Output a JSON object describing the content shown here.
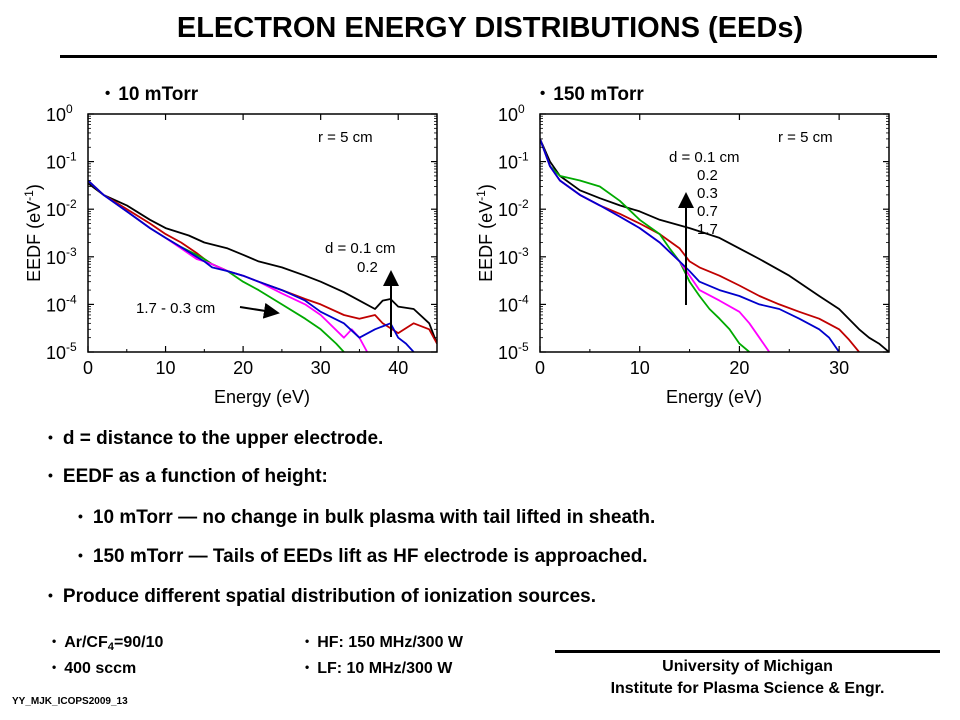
{
  "title": "ELECTRON ENERGY DISTRIBUTIONS (EEDs)",
  "chart_data": [
    {
      "type": "line",
      "panel_title": "10 mTorr",
      "xlabel": "Energy (eV)",
      "ylabel_main": "EEDF (eV",
      "ylabel_sup": "-1",
      "ylabel_close": ")",
      "y_scale": "log",
      "xlim": [
        0,
        45
      ],
      "ylim": [
        1e-05,
        1
      ],
      "xticks": [
        0,
        10,
        20,
        30,
        40
      ],
      "yticks": [
        1,
        0.1,
        0.01,
        0.001,
        0.0001,
        1e-05
      ],
      "ytick_exponents": [
        "0",
        "-1",
        "-2",
        "-3",
        "-4",
        "-5"
      ],
      "annotations": {
        "radius": "r = 5 cm",
        "d_high": "d =  0.1 cm",
        "d_high2": "0.2",
        "d_low": "1.7 - 0.3 cm"
      },
      "series": [
        {
          "color": "#000000",
          "x": [
            0,
            2,
            5,
            8,
            10,
            13,
            15,
            18,
            20,
            22,
            25,
            28,
            30,
            33,
            35,
            37,
            38,
            39,
            40,
            42,
            44,
            45
          ],
          "y": [
            0.035,
            0.02,
            0.012,
            0.006,
            0.004,
            0.0028,
            0.002,
            0.0015,
            0.0011,
            0.0008,
            0.0006,
            0.0004,
            0.0003,
            0.00018,
            0.00012,
            8e-05,
            0.00012,
            0.00013,
            9e-05,
            8e-05,
            4e-05,
            1.5e-05
          ]
        },
        {
          "color": "#c00000",
          "x": [
            0,
            2,
            5,
            8,
            10,
            12,
            14,
            15,
            16,
            18,
            20,
            22,
            25,
            28,
            30,
            33,
            35,
            37,
            38,
            40,
            42,
            44,
            45
          ],
          "y": [
            0.04,
            0.02,
            0.01,
            0.005,
            0.003,
            0.002,
            0.0012,
            0.0009,
            0.0007,
            0.0005,
            0.0004,
            0.0003,
            0.0002,
            0.00013,
            0.0001,
            6e-05,
            5e-05,
            6e-05,
            4e-05,
            2.5e-05,
            4e-05,
            3e-05,
            1.5e-05
          ]
        },
        {
          "color": "#00aa00",
          "x": [
            0,
            2,
            5,
            8,
            10,
            12,
            14,
            15,
            16,
            18,
            20,
            22,
            25,
            28,
            30,
            32,
            33
          ],
          "y": [
            0.04,
            0.02,
            0.009,
            0.004,
            0.0025,
            0.0016,
            0.0011,
            0.0009,
            0.0007,
            0.0005,
            0.0003,
            0.0002,
            0.0001,
            5e-05,
            3e-05,
            1.5e-05,
            1e-05
          ]
        },
        {
          "color": "#ff00ff",
          "x": [
            0,
            2,
            5,
            8,
            10,
            12,
            14,
            15,
            16,
            18,
            20,
            22,
            25,
            28,
            30,
            33,
            34,
            35,
            36
          ],
          "y": [
            0.04,
            0.02,
            0.009,
            0.004,
            0.0025,
            0.0015,
            0.0009,
            0.0008,
            0.0007,
            0.0005,
            0.0004,
            0.0003,
            0.00017,
            0.0001,
            6e-05,
            2e-05,
            3e-05,
            2e-05,
            1e-05
          ]
        },
        {
          "color": "#0000cc",
          "x": [
            0,
            2,
            5,
            8,
            10,
            12,
            14,
            15,
            16,
            18,
            20,
            22,
            25,
            28,
            30,
            33,
            35,
            37,
            39,
            40,
            41,
            42
          ],
          "y": [
            0.04,
            0.02,
            0.009,
            0.004,
            0.0025,
            0.0016,
            0.001,
            0.0008,
            0.0006,
            0.0005,
            0.0004,
            0.0003,
            0.0002,
            0.00012,
            7e-05,
            4e-05,
            2e-05,
            3e-05,
            4e-05,
            2e-05,
            1.5e-05,
            1e-05
          ]
        }
      ]
    },
    {
      "type": "line",
      "panel_title": "150 mTorr",
      "xlabel": "Energy (eV)",
      "ylabel_main": "EEDF (eV",
      "ylabel_sup": "-1",
      "ylabel_close": ")",
      "y_scale": "log",
      "xlim": [
        0,
        35
      ],
      "ylim": [
        1e-05,
        1
      ],
      "xticks": [
        0,
        10,
        20,
        30
      ],
      "yticks": [
        1,
        0.1,
        0.01,
        0.001,
        0.0001,
        1e-05
      ],
      "ytick_exponents": [
        "0",
        "-1",
        "-2",
        "-3",
        "-4",
        "-5"
      ],
      "annotations": {
        "radius": "r = 5 cm",
        "d_list": [
          "d = 0.1 cm",
          "0.2",
          "0.3",
          "0.7",
          "1.7"
        ]
      },
      "series": [
        {
          "color": "#000000",
          "x": [
            0,
            1,
            2,
            4,
            6,
            8,
            10,
            12,
            15,
            18,
            20,
            22,
            25,
            28,
            30,
            32,
            33,
            34,
            35
          ],
          "y": [
            0.3,
            0.1,
            0.05,
            0.025,
            0.017,
            0.012,
            0.009,
            0.006,
            0.004,
            0.0025,
            0.0015,
            0.0009,
            0.0004,
            0.00015,
            8e-05,
            3e-05,
            2e-05,
            1.5e-05,
            1e-05
          ]
        },
        {
          "color": "#c00000",
          "x": [
            0,
            1,
            2,
            4,
            6,
            8,
            10,
            12,
            14,
            15,
            16,
            18,
            20,
            22,
            24,
            26,
            28,
            30,
            31,
            32
          ],
          "y": [
            0.3,
            0.08,
            0.04,
            0.02,
            0.012,
            0.008,
            0.005,
            0.003,
            0.0015,
            0.0008,
            0.0006,
            0.0004,
            0.00025,
            0.00015,
            0.0001,
            7e-05,
            5e-05,
            3e-05,
            1.8e-05,
            1e-05
          ]
        },
        {
          "color": "#00aa00",
          "x": [
            0,
            1,
            2,
            4,
            6,
            8,
            10,
            12,
            13,
            14,
            15,
            16,
            17,
            18,
            19,
            20,
            21
          ],
          "y": [
            0.3,
            0.08,
            0.05,
            0.04,
            0.03,
            0.015,
            0.006,
            0.003,
            0.0015,
            0.0008,
            0.0003,
            0.00015,
            8e-05,
            5e-05,
            3e-05,
            1.5e-05,
            1e-05
          ]
        },
        {
          "color": "#ff00ff",
          "x": [
            0,
            1,
            2,
            4,
            6,
            8,
            10,
            12,
            14,
            15,
            16,
            18,
            20,
            21,
            22,
            23
          ],
          "y": [
            0.3,
            0.08,
            0.04,
            0.02,
            0.012,
            0.007,
            0.004,
            0.002,
            0.0008,
            0.0004,
            0.0002,
            0.00012,
            7e-05,
            4e-05,
            2e-05,
            1e-05
          ]
        },
        {
          "color": "#0000cc",
          "x": [
            0,
            1,
            2,
            4,
            6,
            8,
            10,
            12,
            14,
            15,
            16,
            18,
            20,
            22,
            24,
            26,
            28,
            29,
            30
          ],
          "y": [
            0.3,
            0.08,
            0.04,
            0.02,
            0.012,
            0.007,
            0.004,
            0.002,
            0.0008,
            0.0005,
            0.0003,
            0.0002,
            0.00015,
            0.0001,
            8e-05,
            5e-05,
            3e-05,
            2e-05,
            1e-05
          ]
        }
      ]
    }
  ],
  "bullets": {
    "p1": "d = distance to the upper electrode.",
    "p2": "EEDF as a function of height:",
    "p3": "10 mTorr — no change in bulk plasma with tail lifted in sheath.",
    "p4": "150 mTorr — Tails of EEDs lift as HF electrode is approached.",
    "p5": "Produce different spatial distribution of ionization sources."
  },
  "conditions": {
    "gas_a": "Ar/CF",
    "gas_sub": "4",
    "gas_b": "=90/10",
    "flow": "400 sccm",
    "hf": "HF: 150 MHz/300 W",
    "lf": "LF: 10 MHz/300 W"
  },
  "footer": {
    "university": "University of Michigan",
    "institute": "Institute for Plasma Science & Engr.",
    "slide_code": "YY_MJK_ICOPS2009_13"
  },
  "bullet_glyph": "•"
}
